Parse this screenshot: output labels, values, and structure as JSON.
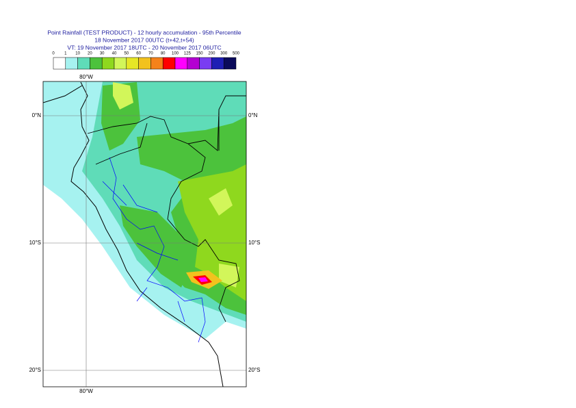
{
  "header": {
    "title": "Point Rainfall (TEST PRODUCT) - 12 hourly accumulation - 95th Percentile",
    "base_time": "18 November 2017 00UTC (t+42,t+54)",
    "valid_time": "VT: 19 November 2017 18UTC - 20 November 2017 06UTC"
  },
  "legend": {
    "labels": [
      "0",
      "1",
      "10",
      "20",
      "30",
      "40",
      "50",
      "60",
      "70",
      "80",
      "100",
      "125",
      "150",
      "200",
      "300",
      "500"
    ],
    "colors": [
      "#ffffff",
      "#a6f2f0",
      "#5fdcb8",
      "#4cc23c",
      "#8fd81e",
      "#d2f65a",
      "#e6e626",
      "#f2c21e",
      "#f5821a",
      "#ff0000",
      "#ff00ff",
      "#b400d2",
      "#7a3cf2",
      "#1e1eb4",
      "#0a0a5a"
    ]
  },
  "map": {
    "lon_label_top": "80°W",
    "lon_label_bottom": "80°W",
    "lat_labels_left": [
      "0°N",
      "10°S",
      "20°S"
    ],
    "lat_labels_right": [
      "0°N",
      "10°S",
      "20°S"
    ]
  }
}
